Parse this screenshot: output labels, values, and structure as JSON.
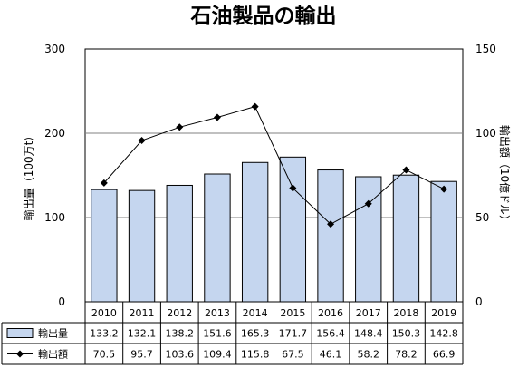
{
  "chart_data": {
    "type": "bar",
    "title": "石油製品の輸出",
    "categories": [
      "2010",
      "2011",
      "2012",
      "2013",
      "2014",
      "2015",
      "2016",
      "2017",
      "2018",
      "2019"
    ],
    "series": [
      {
        "name": "輸出量",
        "type": "bar",
        "axis": "left",
        "values": [
          133.2,
          132.1,
          138.2,
          151.6,
          165.3,
          171.7,
          156.4,
          148.4,
          150.3,
          142.8
        ],
        "color": "#c5d6ef",
        "stroke": "#000000"
      },
      {
        "name": "輸出額",
        "type": "line",
        "axis": "right",
        "values": [
          70.5,
          95.7,
          103.6,
          109.4,
          115.8,
          67.5,
          46.1,
          58.2,
          78.2,
          66.9
        ],
        "color": "#000000",
        "marker": "diamond"
      }
    ],
    "ylabel": "輸出量（100万t）",
    "y2label": "輸出額（10億ドル）",
    "ylim": [
      0,
      300
    ],
    "y2lim": [
      0,
      150
    ],
    "yticks": [
      0,
      100,
      200,
      300
    ],
    "y2ticks": [
      0,
      50,
      100,
      150
    ],
    "grid": true,
    "data_table": true
  }
}
